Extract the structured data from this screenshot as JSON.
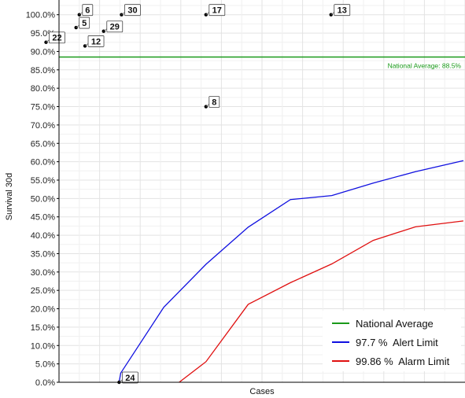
{
  "chart_data": {
    "type": "scatter",
    "xlabel": "Cases",
    "ylabel": "Survival 30d",
    "ylim": [
      0,
      100
    ],
    "yticks": [
      "0.0%",
      "5.0%",
      "10.0%",
      "15.0%",
      "20.0%",
      "25.0%",
      "30.0%",
      "35.0%",
      "40.0%",
      "45.0%",
      "50.0%",
      "55.0%",
      "60.0%",
      "65.0%",
      "70.0%",
      "75.0%",
      "80.0%",
      "85.0%",
      "90.0%",
      "95.0%",
      "100.0%"
    ],
    "grid": true,
    "x_domain": [
      0,
      50
    ],
    "points": [
      {
        "label": "6",
        "x": 2.5,
        "y": 100
      },
      {
        "label": "30",
        "x": 7.7,
        "y": 100
      },
      {
        "label": "17",
        "x": 18.1,
        "y": 100
      },
      {
        "label": "13",
        "x": 33.5,
        "y": 100
      },
      {
        "label": "5",
        "x": 2.1,
        "y": 96.5
      },
      {
        "label": "29",
        "x": 5.5,
        "y": 95.5
      },
      {
        "label": "22",
        "x": -1.6,
        "y": 92.5
      },
      {
        "label": "12",
        "x": 3.2,
        "y": 91.5
      },
      {
        "label": "8",
        "x": 18.1,
        "y": 75
      },
      {
        "label": "24",
        "x": 7.4,
        "y": 0
      }
    ],
    "national_average": {
      "value": 88.5,
      "label": "National Average: 88.5%"
    },
    "alert_limit": {
      "x": [
        7.4,
        7.6,
        12.9,
        18.1,
        23.3,
        28.5,
        33.6,
        38.7,
        43.9,
        49.8
      ],
      "y": [
        0,
        2.5,
        20.4,
        32.1,
        42.2,
        49.7,
        50.8,
        54.2,
        57.3,
        60.3
      ]
    },
    "alarm_limit": {
      "x": [
        14.8,
        18.1,
        23.3,
        28.5,
        33.6,
        38.7,
        43.9,
        49.8
      ],
      "y": [
        0,
        5.6,
        21.2,
        27.1,
        32.2,
        38.6,
        42.3,
        43.9
      ]
    },
    "legend": {
      "placement": "bottom-right",
      "items": [
        {
          "label": "National Average",
          "color": "#1a9a1a"
        },
        {
          "label": "97.7 %  Alert Limit",
          "color": "#1010e0"
        },
        {
          "label": "99.86 %  Alarm Limit",
          "color": "#e01010"
        }
      ]
    },
    "colors": {
      "national": "#1a9a1a",
      "alert": "#1010e0",
      "alarm": "#e01010",
      "grid": "#e3e3e3",
      "axis": "#000000"
    }
  }
}
